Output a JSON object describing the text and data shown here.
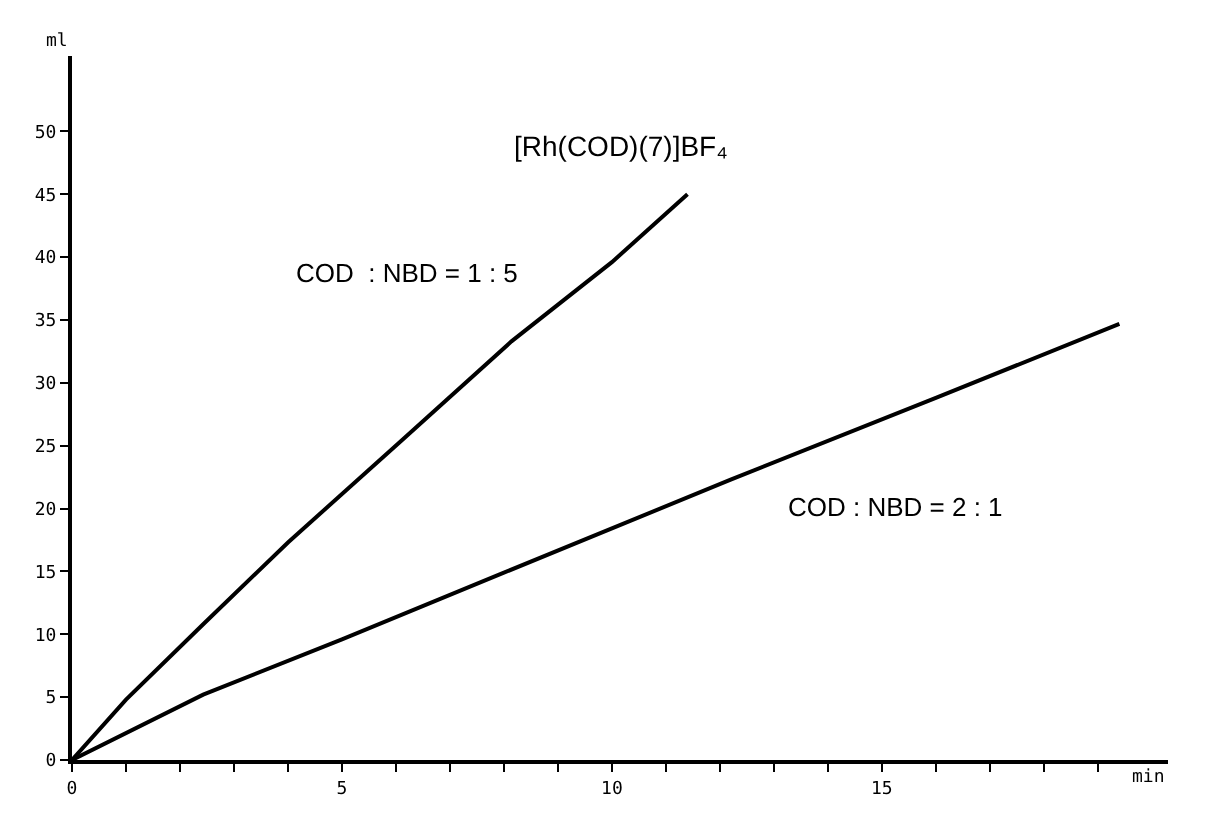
{
  "chart_data": {
    "type": "line",
    "title": "[Rh(COD)(7)]BF₄",
    "xlabel": "min",
    "ylabel": "ml",
    "series": [
      {
        "name": "COD  : NBD = 1 : 5",
        "color": "#000000",
        "x": [
          0,
          1,
          2.43,
          4,
          6.1,
          8.14,
          10,
          11.4
        ],
        "values": [
          0,
          4.8,
          10.8,
          17.3,
          25.4,
          33.3,
          39.6,
          45
        ]
      },
      {
        "name": "COD : NBD = 2 : 1",
        "color": "#000000",
        "x": [
          0,
          2.43,
          5,
          8,
          12.2,
          16,
          19.4
        ],
        "values": [
          0,
          5.2,
          9.6,
          14.9,
          22.3,
          28.8,
          34.7
        ]
      }
    ],
    "xlim": [
      0,
      20.3
    ],
    "ylim": [
      0,
      56
    ],
    "xticks": [
      0,
      {
        "value": 1,
        "label": null
      },
      {
        "value": 2,
        "label": null
      },
      {
        "value": 3,
        "label": null
      },
      {
        "value": 4,
        "label": null
      },
      5,
      {
        "value": 6,
        "label": null
      },
      {
        "value": 7,
        "label": null
      },
      {
        "value": 8,
        "label": null
      },
      {
        "value": 9,
        "label": null
      },
      10,
      {
        "value": 11,
        "label": null
      },
      {
        "value": 12,
        "label": null
      },
      {
        "value": 13,
        "label": null
      },
      {
        "value": 14,
        "label": null
      },
      15,
      {
        "value": 16,
        "label": null
      },
      {
        "value": 17,
        "label": null
      },
      {
        "value": 18,
        "label": null
      },
      {
        "value": 19,
        "label": null
      }
    ],
    "yticks": [
      0,
      5,
      10,
      15,
      20,
      25,
      30,
      35,
      40,
      45,
      50
    ],
    "legend": false,
    "marker": "none",
    "line_style": "solid"
  }
}
